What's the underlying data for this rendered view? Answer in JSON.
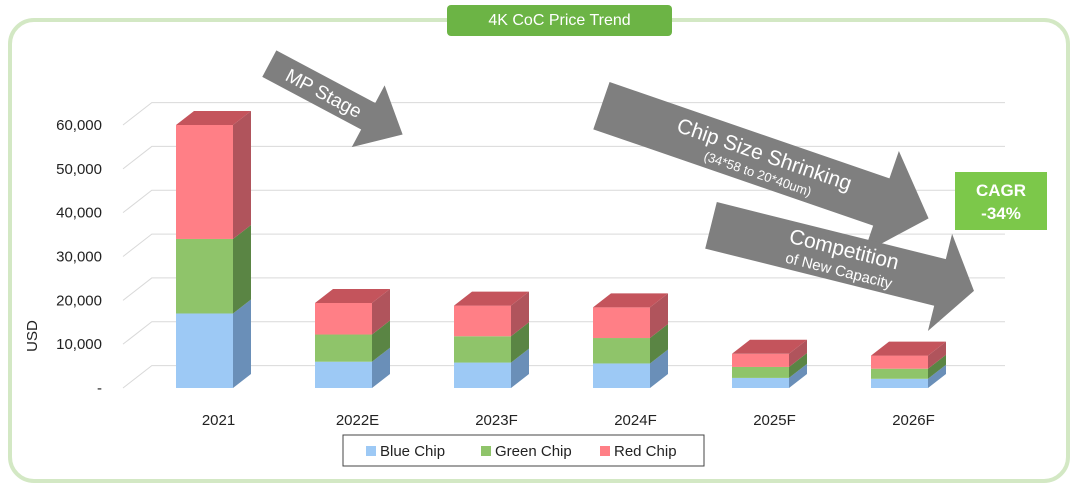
{
  "colors": {
    "frame": "#d3e8c4",
    "title_bg": "#6cb445",
    "blue_front": "#9dc9f5",
    "blue_top": "#8fb7e0",
    "blue_side": "#6a8fb8",
    "green_front": "#8fc46a",
    "green_top": "#7fb05c",
    "green_side": "#5a8544",
    "red_front": "#ff7f86",
    "red_top": "#c4545c",
    "red_side": "#b0545c",
    "arrow": "#7f7f7f",
    "cagr_bg": "#7cc84a"
  },
  "chart_data": {
    "type": "bar",
    "stacked": true,
    "title": "4K CoC Price Trend",
    "ylabel": "USD",
    "xlabel": "",
    "ylim": [
      0,
      60000
    ],
    "yticks": [
      {
        "value": 0,
        "label": "-"
      },
      {
        "value": 10000,
        "label": "10,000"
      },
      {
        "value": 20000,
        "label": "20,000"
      },
      {
        "value": 30000,
        "label": "30,000"
      },
      {
        "value": 40000,
        "label": "40,000"
      },
      {
        "value": 50000,
        "label": "50,000"
      },
      {
        "value": 60000,
        "label": "60,000"
      }
    ],
    "categories": [
      "2021",
      "2022E",
      "2023F",
      "2024F",
      "2025F",
      "2026F"
    ],
    "series": [
      {
        "name": "Blue Chip",
        "key": "blue",
        "values": [
          17000,
          6000,
          5800,
          5600,
          2300,
          2100
        ]
      },
      {
        "name": "Green Chip",
        "key": "green",
        "values": [
          17000,
          6200,
          6000,
          5800,
          2500,
          2300
        ]
      },
      {
        "name": "Red Chip",
        "key": "red",
        "values": [
          26000,
          7200,
          7000,
          7000,
          3000,
          3000
        ]
      }
    ],
    "legend_position": "bottom"
  },
  "annotations": {
    "mp_stage": "MP Stage",
    "shrink_title": "Chip Size Shrinking",
    "shrink_sub": "(34*58 to 20*40um)",
    "competition_title": "Competition",
    "competition_sub": "of New Capacity",
    "cagr_label": "CAGR",
    "cagr_value": "-34%"
  }
}
